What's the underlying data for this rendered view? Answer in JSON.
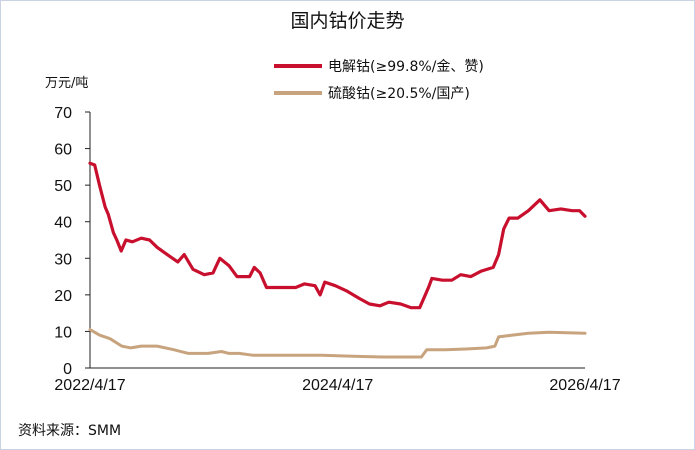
{
  "chart_data": {
    "type": "line",
    "title": "国内钴价走势",
    "ylabel": "万元/吨",
    "ylim": [
      0,
      70
    ],
    "yticks": [
      0,
      10,
      20,
      30,
      40,
      50,
      60,
      70
    ],
    "x_range": [
      "2022-04-17",
      "2026-04-17"
    ],
    "xtick_labels": [
      "2022/4/17",
      "2024/4/17",
      "2026/4/17"
    ],
    "xtick_dates": [
      "2022-04-17",
      "2024-04-17",
      "2026-04-17"
    ],
    "grid": false,
    "legend_position": "top-right",
    "source": "资料来源：SMM",
    "series": [
      {
        "name": "电解钴(≥99.8%/金、赞)",
        "color": "#c8102e",
        "points": [
          [
            "2022-04-17",
            56
          ],
          [
            "2022-05-01",
            55.5
          ],
          [
            "2022-05-15",
            50
          ],
          [
            "2022-06-01",
            44
          ],
          [
            "2022-06-10",
            42
          ],
          [
            "2022-06-25",
            37
          ],
          [
            "2022-07-05",
            35
          ],
          [
            "2022-07-18",
            32
          ],
          [
            "2022-08-01",
            35
          ],
          [
            "2022-08-20",
            34.5
          ],
          [
            "2022-09-15",
            35.5
          ],
          [
            "2022-10-10",
            35
          ],
          [
            "2022-11-01",
            33
          ],
          [
            "2022-12-01",
            31
          ],
          [
            "2023-01-01",
            29
          ],
          [
            "2023-01-20",
            31
          ],
          [
            "2023-02-15",
            27
          ],
          [
            "2023-03-20",
            25.5
          ],
          [
            "2023-04-15",
            26
          ],
          [
            "2023-05-05",
            30
          ],
          [
            "2023-06-01",
            28
          ],
          [
            "2023-06-25",
            25
          ],
          [
            "2023-08-01",
            25
          ],
          [
            "2023-08-15",
            27.5
          ],
          [
            "2023-09-01",
            26
          ],
          [
            "2023-09-20",
            22
          ],
          [
            "2023-11-01",
            22
          ],
          [
            "2023-12-15",
            22
          ],
          [
            "2024-01-10",
            23
          ],
          [
            "2024-02-10",
            22.5
          ],
          [
            "2024-02-25",
            20
          ],
          [
            "2024-03-10",
            23.5
          ],
          [
            "2024-04-10",
            22.5
          ],
          [
            "2024-05-15",
            21
          ],
          [
            "2024-06-20",
            19
          ],
          [
            "2024-07-20",
            17.5
          ],
          [
            "2024-08-20",
            17
          ],
          [
            "2024-09-15",
            18
          ],
          [
            "2024-10-20",
            17.5
          ],
          [
            "2024-11-20",
            16.5
          ],
          [
            "2024-12-15",
            16.5
          ],
          [
            "2025-01-10",
            22
          ],
          [
            "2025-01-20",
            24.5
          ],
          [
            "2025-02-20",
            24
          ],
          [
            "2025-03-20",
            24
          ],
          [
            "2025-04-15",
            25.5
          ],
          [
            "2025-05-15",
            25
          ],
          [
            "2025-06-15",
            26.5
          ],
          [
            "2025-07-20",
            27.5
          ],
          [
            "2025-08-05",
            31
          ],
          [
            "2025-08-20",
            38
          ],
          [
            "2025-09-05",
            41
          ],
          [
            "2025-10-01",
            41
          ],
          [
            "2025-11-01",
            43
          ],
          [
            "2025-12-05",
            46
          ],
          [
            "2026-01-01",
            43
          ],
          [
            "2026-02-05",
            43.5
          ],
          [
            "2026-03-10",
            43
          ],
          [
            "2026-04-01",
            43
          ],
          [
            "2026-04-17",
            41.5
          ]
        ]
      },
      {
        "name": "硫酸钴(≥20.5%/国产)",
        "color": "#c8a47e",
        "points": [
          [
            "2022-04-17",
            10.5
          ],
          [
            "2022-05-15",
            9
          ],
          [
            "2022-06-15",
            8
          ],
          [
            "2022-07-20",
            6
          ],
          [
            "2022-08-15",
            5.5
          ],
          [
            "2022-09-15",
            6
          ],
          [
            "2022-11-01",
            6
          ],
          [
            "2022-12-20",
            5
          ],
          [
            "2023-02-01",
            4
          ],
          [
            "2023-04-01",
            4
          ],
          [
            "2023-05-10",
            4.5
          ],
          [
            "2023-06-01",
            4
          ],
          [
            "2023-07-01",
            4
          ],
          [
            "2023-08-10",
            3.5
          ],
          [
            "2023-10-01",
            3.5
          ],
          [
            "2023-12-01",
            3.5
          ],
          [
            "2024-03-01",
            3.5
          ],
          [
            "2024-06-01",
            3.2
          ],
          [
            "2024-09-01",
            3
          ],
          [
            "2024-12-01",
            3
          ],
          [
            "2024-12-20",
            3
          ],
          [
            "2025-01-05",
            5
          ],
          [
            "2025-03-01",
            5
          ],
          [
            "2025-05-01",
            5.2
          ],
          [
            "2025-07-01",
            5.5
          ],
          [
            "2025-07-25",
            6
          ],
          [
            "2025-08-05",
            8.5
          ],
          [
            "2025-09-15",
            9
          ],
          [
            "2025-11-01",
            9.5
          ],
          [
            "2026-01-01",
            9.8
          ],
          [
            "2026-04-17",
            9.5
          ]
        ]
      }
    ]
  }
}
